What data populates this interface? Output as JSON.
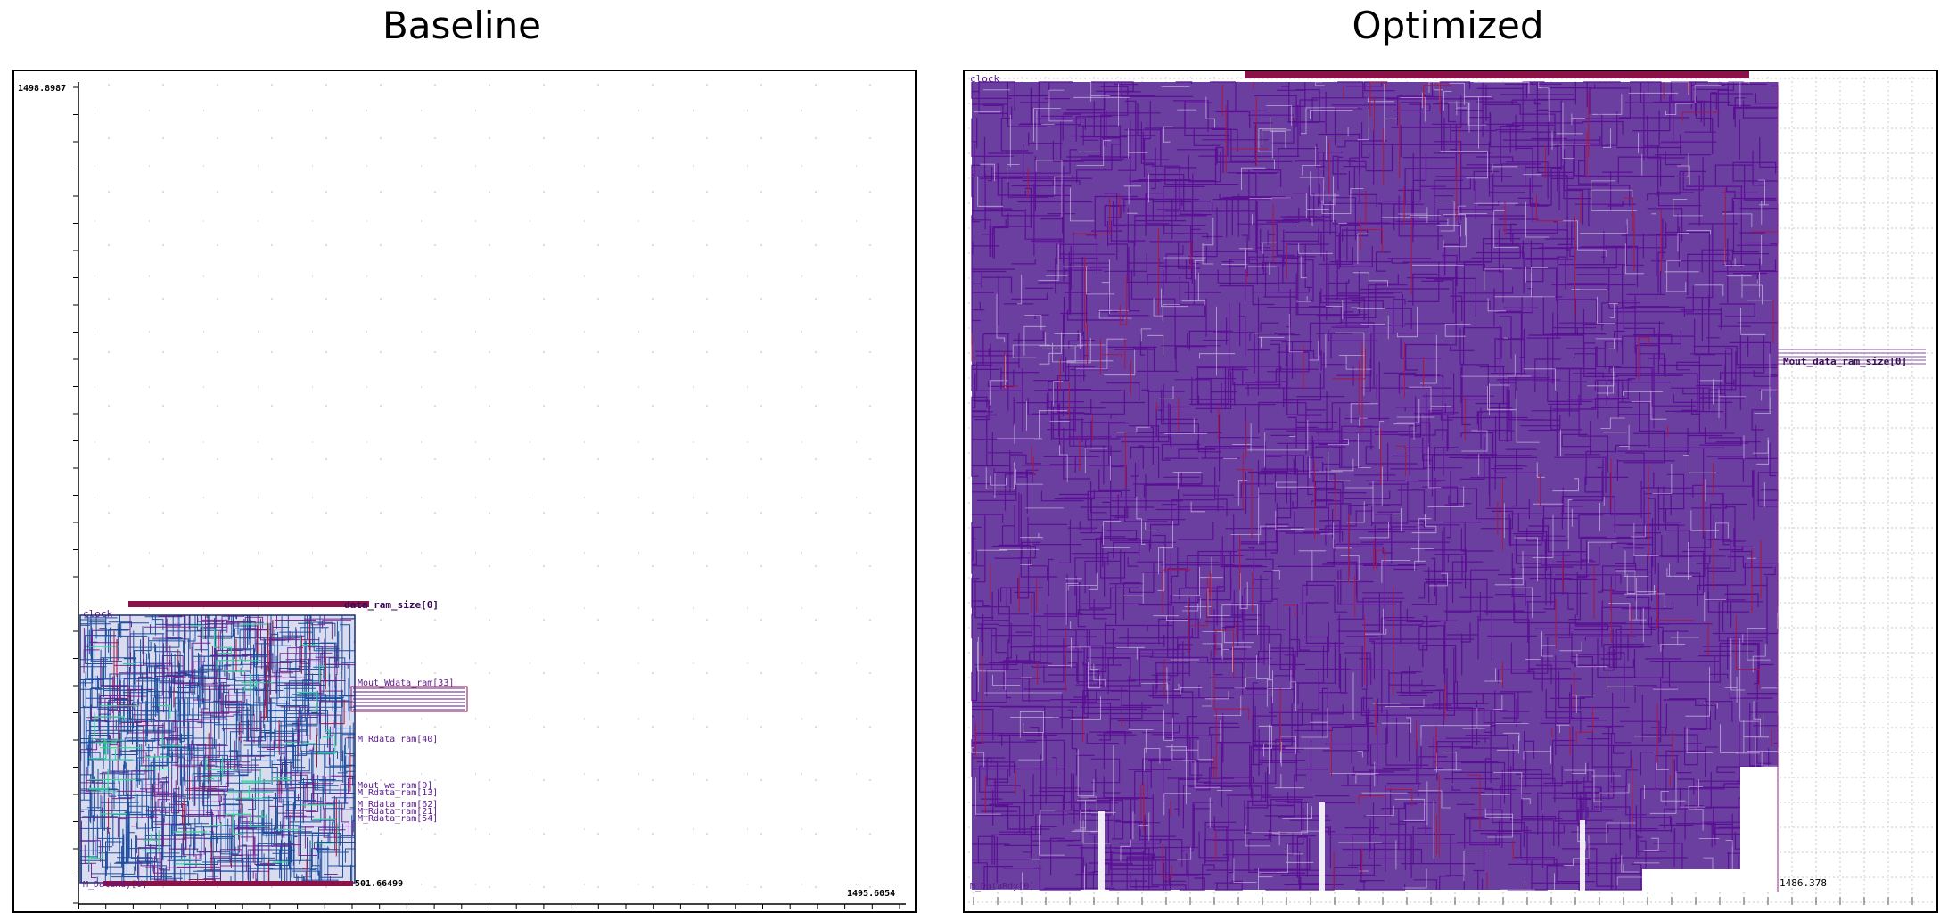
{
  "titles": {
    "left": "Baseline",
    "right": "Optimized"
  },
  "baseline": {
    "corner_top_label": "1498.8987",
    "corner_right_label": "1495.6054",
    "die_corner_label": "501.66499",
    "top_pin_label": "data_ram_size[0]",
    "left_pin_labels": [
      "clock",
      "M_DataRdy[0]"
    ],
    "right_pin_labels": [
      "Mout_Wdata_ram[33]",
      "M_Rdata_ram[40]",
      "Mout_we_ram[0]",
      "M_Rdata_ram[13]",
      "M_Rdata_ram[62]",
      "M_Rdata_ram[21]",
      "M_Rdata_ram[54]"
    ],
    "colors": {
      "route_blue": "#1f4e9e",
      "route_purple": "#6a1a8a",
      "route_green": "#2fd39a",
      "route_red": "#b01040",
      "pin_maroon": "#8a1248",
      "grid": "#b8b8b8"
    }
  },
  "optimized": {
    "corner_right_label": "1486.378",
    "left_pin_labels": [
      "clock",
      "M_DataRdy[0]"
    ],
    "right_pin_label": "Mout_data_ram_size[0]",
    "colors": {
      "route_purple": "#5b0f94",
      "route_red": "#a81840",
      "pin_maroon": "#8a1248",
      "grid": "#c8c8c8"
    }
  }
}
